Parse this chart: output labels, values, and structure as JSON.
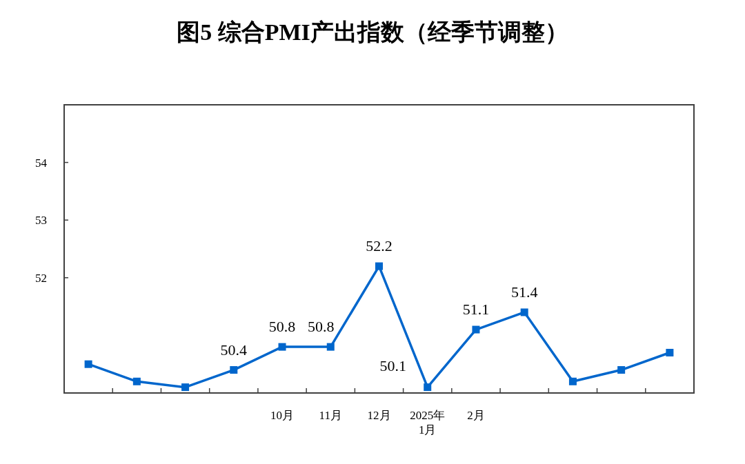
{
  "chart_data": {
    "type": "line",
    "title": "图5  综合PMI产出指数（经季节调整）",
    "categories": [
      null,
      null,
      null,
      null,
      "10月",
      "11月",
      "12月",
      "2025年\n1月",
      "2月",
      null,
      null,
      null,
      null
    ],
    "values": [
      50.5,
      50.2,
      50.1,
      50.4,
      50.8,
      50.8,
      52.2,
      50.1,
      51.1,
      51.4,
      50.2,
      50.4,
      50.7
    ],
    "value_labels": [
      null,
      null,
      null,
      "50.4",
      "50.8",
      "50.8",
      "52.2",
      "50.1",
      "51.1",
      "51.4",
      null,
      null,
      null
    ],
    "color": "#0066cc",
    "marker": "square",
    "line_style": "solid",
    "grid": false,
    "ylim": [
      50,
      55
    ],
    "yticks": [
      52,
      53,
      54
    ]
  }
}
